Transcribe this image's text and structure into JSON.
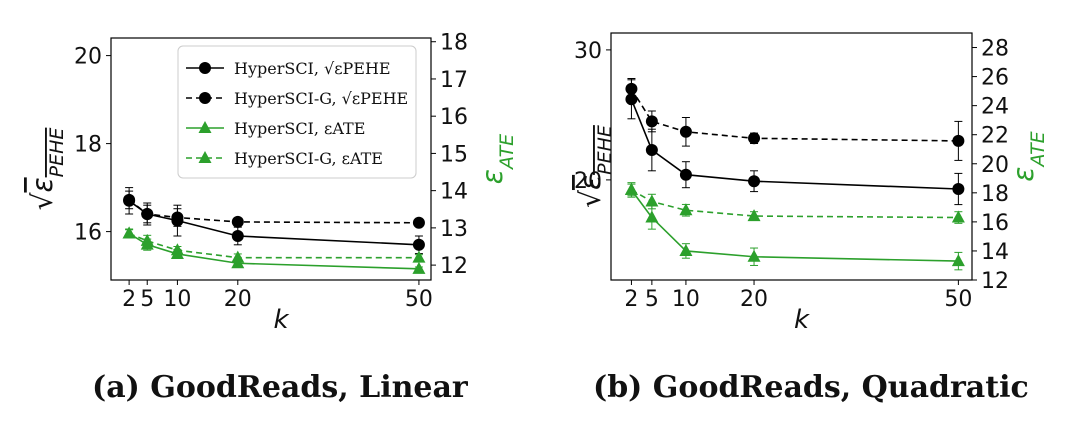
{
  "colors": {
    "black": "#000000",
    "green": "#2ca02c"
  },
  "legend": [
    {
      "label": "HyperSCI, √εPEHE",
      "color": "#000000",
      "style": "solid",
      "marker": "circle"
    },
    {
      "label": "HyperSCI-G, √εPEHE",
      "color": "#000000",
      "style": "dashed",
      "marker": "circle"
    },
    {
      "label": "HyperSCI, εATE",
      "color": "#2ca02c",
      "style": "solid",
      "marker": "triangle"
    },
    {
      "label": "HyperSCI-G, εATE",
      "color": "#2ca02c",
      "style": "dashed",
      "marker": "triangle"
    }
  ],
  "chart_data": [
    {
      "type": "line",
      "caption": "(a) GoodReads, Linear",
      "xlabel": "k",
      "ylabel_left": "√εPEHE",
      "ylabel_right": "εATE",
      "x": [
        2,
        5,
        10,
        20,
        50
      ],
      "xlim": [
        -1,
        52
      ],
      "ylim_left": [
        14.9,
        20.4
      ],
      "yticks_left": [
        16,
        18,
        20
      ],
      "ylim_right": [
        11.6,
        18.1
      ],
      "yticks_right": [
        12,
        13,
        14,
        15,
        16,
        17,
        18
      ],
      "series": [
        {
          "name": "HyperSCI, √εPEHE",
          "axis": "left",
          "values": [
            16.7,
            16.4,
            16.25,
            15.9,
            15.7
          ],
          "err": [
            0.3,
            0.25,
            0.35,
            0.2,
            0.2
          ]
        },
        {
          "name": "HyperSCI-G, √εPEHE",
          "axis": "left",
          "values": [
            16.72,
            16.4,
            16.32,
            16.22,
            16.2
          ],
          "err": [
            0.2,
            0.2,
            0.2,
            0.08,
            0.08
          ]
        },
        {
          "name": "HyperSCI, εATE",
          "axis": "right",
          "values": [
            12.85,
            12.55,
            12.3,
            12.05,
            11.9
          ],
          "err": [
            0.12,
            0.15,
            0.12,
            0.1,
            0.05
          ]
        },
        {
          "name": "HyperSCI-G, εATE",
          "axis": "right",
          "values": [
            12.85,
            12.65,
            12.4,
            12.2,
            12.2
          ],
          "err": [
            0.1,
            0.15,
            0.1,
            0.1,
            0.08
          ]
        }
      ]
    },
    {
      "type": "line",
      "caption": "(b) GoodReads, Quadratic",
      "xlabel": "k",
      "ylabel_left": "√εPEHE",
      "ylabel_right": "εATE",
      "x": [
        2,
        5,
        10,
        20,
        50
      ],
      "xlim": [
        -1,
        52
      ],
      "ylim_left": [
        12.3,
        31.3
      ],
      "yticks_left": [
        20,
        30
      ],
      "ylim_right": [
        12,
        29
      ],
      "yticks_right": [
        12,
        14,
        16,
        18,
        20,
        22,
        24,
        26,
        28
      ],
      "series": [
        {
          "name": "HyperSCI, √εPEHE",
          "axis": "left",
          "values": [
            26.2,
            22.3,
            20.4,
            19.9,
            19.3
          ],
          "err": [
            1.5,
            1.6,
            1.0,
            0.8,
            1.2
          ]
        },
        {
          "name": "HyperSCI-G, √εPEHE",
          "axis": "left",
          "values": [
            27.0,
            24.5,
            23.7,
            23.2,
            23.0
          ],
          "err": [
            0.8,
            0.8,
            1.1,
            0.4,
            1.5
          ]
        },
        {
          "name": "HyperSCI, εATE",
          "axis": "right",
          "values": [
            18.2,
            16.3,
            14.0,
            13.6,
            13.3
          ],
          "err": [
            0.5,
            0.8,
            0.5,
            0.6,
            0.6
          ]
        },
        {
          "name": "HyperSCI-G, εATE",
          "axis": "right",
          "values": [
            18.2,
            17.4,
            16.8,
            16.4,
            16.3
          ],
          "err": [
            0.4,
            0.5,
            0.4,
            0.3,
            0.4
          ]
        }
      ]
    }
  ]
}
